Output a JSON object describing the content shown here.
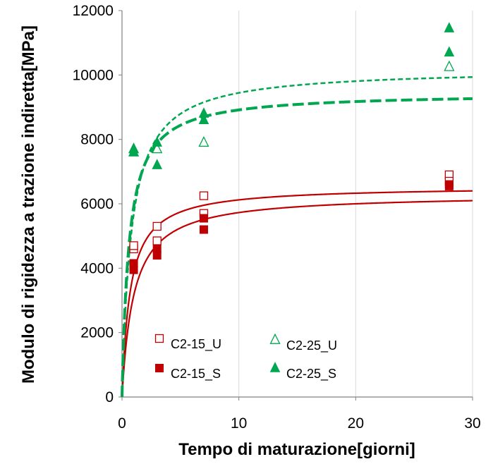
{
  "colors": {
    "red": "#c00000",
    "green": "#00a650",
    "grid": "#d9d9d9",
    "axis": "#808080"
  },
  "chart_data": {
    "type": "scatter",
    "xlabel": "Tempo di maturazione[giorni]",
    "ylabel": "Modulo di rigidezza a trazione indiretta[MPa]",
    "xlim": [
      0,
      30
    ],
    "ylim": [
      0,
      12000
    ],
    "xticks": [
      "0",
      "10",
      "20",
      "30"
    ],
    "yticks": [
      "0",
      "2000",
      "4000",
      "6000",
      "8000",
      "10000",
      "12000"
    ],
    "grid": "vertical",
    "legend_position": "bottom-center",
    "series": [
      {
        "name": "C2-15_U",
        "marker": "square-open",
        "color": "#c00000",
        "points": [
          [
            1,
            4600
          ],
          [
            1,
            4700
          ],
          [
            3,
            5300
          ],
          [
            3,
            4850
          ],
          [
            7,
            6250
          ],
          [
            7,
            5700
          ],
          [
            28,
            6900
          ],
          [
            28,
            6700
          ]
        ]
      },
      {
        "name": "C2-25_U",
        "marker": "triangle-open",
        "color": "#00a650",
        "points": [
          [
            1,
            7600
          ],
          [
            1,
            7700
          ],
          [
            3,
            7700
          ],
          [
            7,
            7900
          ],
          [
            28,
            10250
          ]
        ]
      },
      {
        "name": "C2-15_S",
        "marker": "square-filled",
        "color": "#c00000",
        "points": [
          [
            1,
            4150
          ],
          [
            1,
            3950
          ],
          [
            3,
            4600
          ],
          [
            3,
            4400
          ],
          [
            7,
            5550
          ],
          [
            7,
            5200
          ],
          [
            28,
            6550
          ],
          [
            28,
            6600
          ]
        ]
      },
      {
        "name": "C2-25_S",
        "marker": "triangle-filled",
        "color": "#00a650",
        "points": [
          [
            1,
            7700
          ],
          [
            1,
            7600
          ],
          [
            3,
            7900
          ],
          [
            3,
            7200
          ],
          [
            7,
            8800
          ],
          [
            7,
            8600
          ],
          [
            28,
            11450
          ],
          [
            28,
            10700
          ]
        ]
      }
    ],
    "curves": [
      {
        "color": "#c00000",
        "style": "solid",
        "width": 2.2,
        "asymptote": 6550,
        "half": 0.7
      },
      {
        "color": "#c00000",
        "style": "solid",
        "width": 2.2,
        "asymptote": 6300,
        "half": 1.0
      },
      {
        "color": "#00a650",
        "style": "dashed-fine",
        "width": 2.5,
        "asymptote": 10200,
        "half": 0.8
      },
      {
        "color": "#00a650",
        "style": "dashed-bold",
        "width": 4,
        "asymptote": 9450,
        "half": 0.6
      }
    ]
  }
}
